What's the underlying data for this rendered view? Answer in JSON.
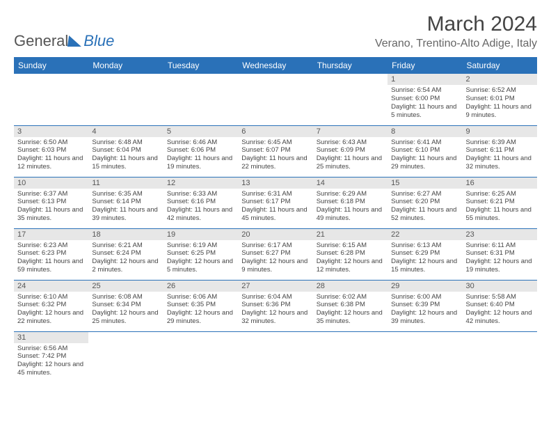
{
  "brand": {
    "part1": "General",
    "part2": "Blue"
  },
  "title": "March 2024",
  "location": "Verano, Trentino-Alto Adige, Italy",
  "colors": {
    "header_bg": "#2a71b8",
    "header_text": "#ffffff",
    "daynum_bg": "#e7e7e7",
    "border": "#2a71b8",
    "body_text": "#444444"
  },
  "typography": {
    "title_fontsize": 30,
    "location_fontsize": 16,
    "dayheader_fontsize": 12,
    "daynum_fontsize": 11,
    "body_fontsize": 9.5
  },
  "day_headers": [
    "Sunday",
    "Monday",
    "Tuesday",
    "Wednesday",
    "Thursday",
    "Friday",
    "Saturday"
  ],
  "weeks": [
    [
      {
        "pad": true
      },
      {
        "pad": true
      },
      {
        "pad": true
      },
      {
        "pad": true
      },
      {
        "pad": true
      },
      {
        "num": "1",
        "sunrise": "Sunrise: 6:54 AM",
        "sunset": "Sunset: 6:00 PM",
        "daylight": "Daylight: 11 hours and 5 minutes."
      },
      {
        "num": "2",
        "sunrise": "Sunrise: 6:52 AM",
        "sunset": "Sunset: 6:01 PM",
        "daylight": "Daylight: 11 hours and 9 minutes."
      }
    ],
    [
      {
        "num": "3",
        "sunrise": "Sunrise: 6:50 AM",
        "sunset": "Sunset: 6:03 PM",
        "daylight": "Daylight: 11 hours and 12 minutes."
      },
      {
        "num": "4",
        "sunrise": "Sunrise: 6:48 AM",
        "sunset": "Sunset: 6:04 PM",
        "daylight": "Daylight: 11 hours and 15 minutes."
      },
      {
        "num": "5",
        "sunrise": "Sunrise: 6:46 AM",
        "sunset": "Sunset: 6:06 PM",
        "daylight": "Daylight: 11 hours and 19 minutes."
      },
      {
        "num": "6",
        "sunrise": "Sunrise: 6:45 AM",
        "sunset": "Sunset: 6:07 PM",
        "daylight": "Daylight: 11 hours and 22 minutes."
      },
      {
        "num": "7",
        "sunrise": "Sunrise: 6:43 AM",
        "sunset": "Sunset: 6:09 PM",
        "daylight": "Daylight: 11 hours and 25 minutes."
      },
      {
        "num": "8",
        "sunrise": "Sunrise: 6:41 AM",
        "sunset": "Sunset: 6:10 PM",
        "daylight": "Daylight: 11 hours and 29 minutes."
      },
      {
        "num": "9",
        "sunrise": "Sunrise: 6:39 AM",
        "sunset": "Sunset: 6:11 PM",
        "daylight": "Daylight: 11 hours and 32 minutes."
      }
    ],
    [
      {
        "num": "10",
        "sunrise": "Sunrise: 6:37 AM",
        "sunset": "Sunset: 6:13 PM",
        "daylight": "Daylight: 11 hours and 35 minutes."
      },
      {
        "num": "11",
        "sunrise": "Sunrise: 6:35 AM",
        "sunset": "Sunset: 6:14 PM",
        "daylight": "Daylight: 11 hours and 39 minutes."
      },
      {
        "num": "12",
        "sunrise": "Sunrise: 6:33 AM",
        "sunset": "Sunset: 6:16 PM",
        "daylight": "Daylight: 11 hours and 42 minutes."
      },
      {
        "num": "13",
        "sunrise": "Sunrise: 6:31 AM",
        "sunset": "Sunset: 6:17 PM",
        "daylight": "Daylight: 11 hours and 45 minutes."
      },
      {
        "num": "14",
        "sunrise": "Sunrise: 6:29 AM",
        "sunset": "Sunset: 6:18 PM",
        "daylight": "Daylight: 11 hours and 49 minutes."
      },
      {
        "num": "15",
        "sunrise": "Sunrise: 6:27 AM",
        "sunset": "Sunset: 6:20 PM",
        "daylight": "Daylight: 11 hours and 52 minutes."
      },
      {
        "num": "16",
        "sunrise": "Sunrise: 6:25 AM",
        "sunset": "Sunset: 6:21 PM",
        "daylight": "Daylight: 11 hours and 55 minutes."
      }
    ],
    [
      {
        "num": "17",
        "sunrise": "Sunrise: 6:23 AM",
        "sunset": "Sunset: 6:23 PM",
        "daylight": "Daylight: 11 hours and 59 minutes."
      },
      {
        "num": "18",
        "sunrise": "Sunrise: 6:21 AM",
        "sunset": "Sunset: 6:24 PM",
        "daylight": "Daylight: 12 hours and 2 minutes."
      },
      {
        "num": "19",
        "sunrise": "Sunrise: 6:19 AM",
        "sunset": "Sunset: 6:25 PM",
        "daylight": "Daylight: 12 hours and 5 minutes."
      },
      {
        "num": "20",
        "sunrise": "Sunrise: 6:17 AM",
        "sunset": "Sunset: 6:27 PM",
        "daylight": "Daylight: 12 hours and 9 minutes."
      },
      {
        "num": "21",
        "sunrise": "Sunrise: 6:15 AM",
        "sunset": "Sunset: 6:28 PM",
        "daylight": "Daylight: 12 hours and 12 minutes."
      },
      {
        "num": "22",
        "sunrise": "Sunrise: 6:13 AM",
        "sunset": "Sunset: 6:29 PM",
        "daylight": "Daylight: 12 hours and 15 minutes."
      },
      {
        "num": "23",
        "sunrise": "Sunrise: 6:11 AM",
        "sunset": "Sunset: 6:31 PM",
        "daylight": "Daylight: 12 hours and 19 minutes."
      }
    ],
    [
      {
        "num": "24",
        "sunrise": "Sunrise: 6:10 AM",
        "sunset": "Sunset: 6:32 PM",
        "daylight": "Daylight: 12 hours and 22 minutes."
      },
      {
        "num": "25",
        "sunrise": "Sunrise: 6:08 AM",
        "sunset": "Sunset: 6:34 PM",
        "daylight": "Daylight: 12 hours and 25 minutes."
      },
      {
        "num": "26",
        "sunrise": "Sunrise: 6:06 AM",
        "sunset": "Sunset: 6:35 PM",
        "daylight": "Daylight: 12 hours and 29 minutes."
      },
      {
        "num": "27",
        "sunrise": "Sunrise: 6:04 AM",
        "sunset": "Sunset: 6:36 PM",
        "daylight": "Daylight: 12 hours and 32 minutes."
      },
      {
        "num": "28",
        "sunrise": "Sunrise: 6:02 AM",
        "sunset": "Sunset: 6:38 PM",
        "daylight": "Daylight: 12 hours and 35 minutes."
      },
      {
        "num": "29",
        "sunrise": "Sunrise: 6:00 AM",
        "sunset": "Sunset: 6:39 PM",
        "daylight": "Daylight: 12 hours and 39 minutes."
      },
      {
        "num": "30",
        "sunrise": "Sunrise: 5:58 AM",
        "sunset": "Sunset: 6:40 PM",
        "daylight": "Daylight: 12 hours and 42 minutes."
      }
    ],
    [
      {
        "num": "31",
        "sunrise": "Sunrise: 6:56 AM",
        "sunset": "Sunset: 7:42 PM",
        "daylight": "Daylight: 12 hours and 45 minutes."
      },
      {
        "pad": true
      },
      {
        "pad": true
      },
      {
        "pad": true
      },
      {
        "pad": true
      },
      {
        "pad": true
      },
      {
        "pad": true
      }
    ]
  ]
}
